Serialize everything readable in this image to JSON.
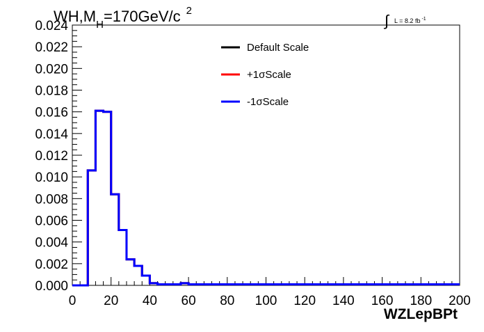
{
  "title": {
    "prefix": "WH,M",
    "subscript": "H",
    "value": "=170GeV/c",
    "superscript": "2"
  },
  "luminosity": {
    "text": "L = 8.2 fb",
    "superscript": "-1"
  },
  "colors": {
    "default": "#000000",
    "plus": "#ff0000",
    "minus": "#0000ff",
    "frame": "#000000"
  },
  "chart_data": {
    "type": "histogram",
    "xlabel": "WZLepBPt",
    "ylabel": "",
    "xlim": [
      0,
      200
    ],
    "ylim": [
      0,
      0.024
    ],
    "grid": false,
    "legend_position": "top-center",
    "xticks": [
      "0",
      "20",
      "40",
      "60",
      "80",
      "100",
      "120",
      "140",
      "160",
      "180",
      "200"
    ],
    "yticks": [
      "0.000",
      "0.002",
      "0.004",
      "0.006",
      "0.008",
      "0.010",
      "0.012",
      "0.014",
      "0.016",
      "0.018",
      "0.020",
      "0.022",
      "0.024"
    ],
    "bin_edges": [
      0,
      4,
      8,
      12,
      16,
      20,
      24,
      28,
      32,
      36,
      40,
      44,
      48,
      52,
      56,
      60,
      64,
      68,
      72,
      76,
      80,
      84,
      88,
      92,
      96,
      100,
      104,
      108,
      112,
      116,
      120,
      124,
      128,
      132,
      136,
      140,
      144,
      148,
      152,
      156,
      160,
      164,
      168,
      172,
      176,
      180,
      184,
      188,
      192,
      196,
      200
    ],
    "series": [
      {
        "name": "Default Scale",
        "color": "#000000",
        "values": [
          0,
          0,
          0.0106,
          0.0161,
          0.016,
          0.0084,
          0.0051,
          0.0024,
          0.0018,
          0.0009,
          0.0002,
          0.0001,
          0.0001,
          0.0001,
          0.0002,
          0.0001,
          0.0001,
          0.0001,
          0.0001,
          0.0001,
          0.0001,
          0.0001,
          0.0001,
          0.0001,
          0.0001,
          0.0001,
          0.0001,
          0.0001,
          0.0001,
          0.0001,
          0.0001,
          0.0001,
          0.0001,
          0.0001,
          0.0001,
          0.0001,
          0.0001,
          0.0001,
          0.0001,
          0.0001,
          0.0001,
          0.0001,
          0.0001,
          0.0001,
          0.0001,
          0.0001,
          0.0001,
          0.0001,
          0.0001,
          0.0001
        ]
      },
      {
        "name": "+1σScale",
        "color": "#ff0000",
        "values": [
          0,
          0,
          0.0106,
          0.0161,
          0.016,
          0.0084,
          0.0051,
          0.0024,
          0.0018,
          0.0009,
          0.0002,
          0.0001,
          0.0001,
          0.0001,
          0.0002,
          0.0001,
          0.0001,
          0.0001,
          0.0001,
          0.0001,
          0.0001,
          0.0001,
          0.0001,
          0.0001,
          0.0001,
          0.0001,
          0.0001,
          0.0001,
          0.0001,
          0.0001,
          0.0001,
          0.0001,
          0.0001,
          0.0001,
          0.0001,
          0.0001,
          0.0001,
          0.0001,
          0.0001,
          0.0001,
          0.0001,
          0.0001,
          0.0001,
          0.0001,
          0.0001,
          0.0001,
          0.0001,
          0.0001,
          0.0001,
          0.0001
        ]
      },
      {
        "name": "-1σScale",
        "color": "#0000ff",
        "values": [
          0,
          0,
          0.0106,
          0.0161,
          0.016,
          0.0084,
          0.0051,
          0.0024,
          0.0018,
          0.0009,
          0.0002,
          0.0001,
          0.0001,
          0.0001,
          0.0002,
          0.0001,
          0.0001,
          0.0001,
          0.0001,
          0.0001,
          0.0001,
          0.0001,
          0.0001,
          0.0001,
          0.0001,
          0.0001,
          0.0001,
          0.0001,
          0.0001,
          0.0001,
          0.0001,
          0.0001,
          0.0001,
          0.0001,
          0.0001,
          0.0001,
          0.0001,
          0.0001,
          0.0001,
          0.0001,
          0.0001,
          0.0001,
          0.0001,
          0.0001,
          0.0001,
          0.0001,
          0.0001,
          0.0001,
          0.0001,
          0.0001
        ]
      }
    ]
  }
}
